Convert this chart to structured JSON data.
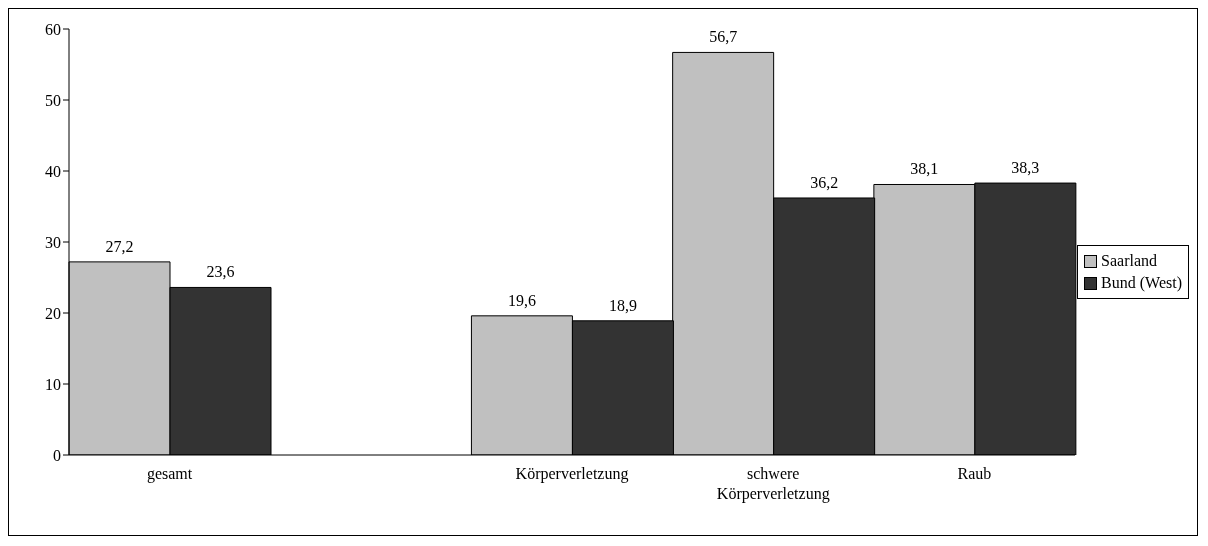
{
  "chart_data": {
    "type": "bar",
    "categories": [
      "gesamt",
      null,
      "Körperverletzung",
      "schwere Körperverletzung",
      "Raub"
    ],
    "series": [
      {
        "name": "Saarland",
        "color": "#c0c0c0",
        "values": [
          27.2,
          null,
          19.6,
          56.7,
          38.1
        ],
        "value_labels": [
          "27,2",
          null,
          "19,6",
          "56,7",
          "38,1"
        ]
      },
      {
        "name": "Bund (West)",
        "color": "#333333",
        "values": [
          23.6,
          null,
          18.9,
          36.2,
          38.3
        ],
        "value_labels": [
          "23,6",
          null,
          "18,9",
          "36,2",
          "38,3"
        ]
      }
    ],
    "ylim": [
      0,
      60
    ],
    "yticks": [
      0,
      10,
      20,
      30,
      40,
      50,
      60
    ],
    "grid": false,
    "legend": "right"
  }
}
